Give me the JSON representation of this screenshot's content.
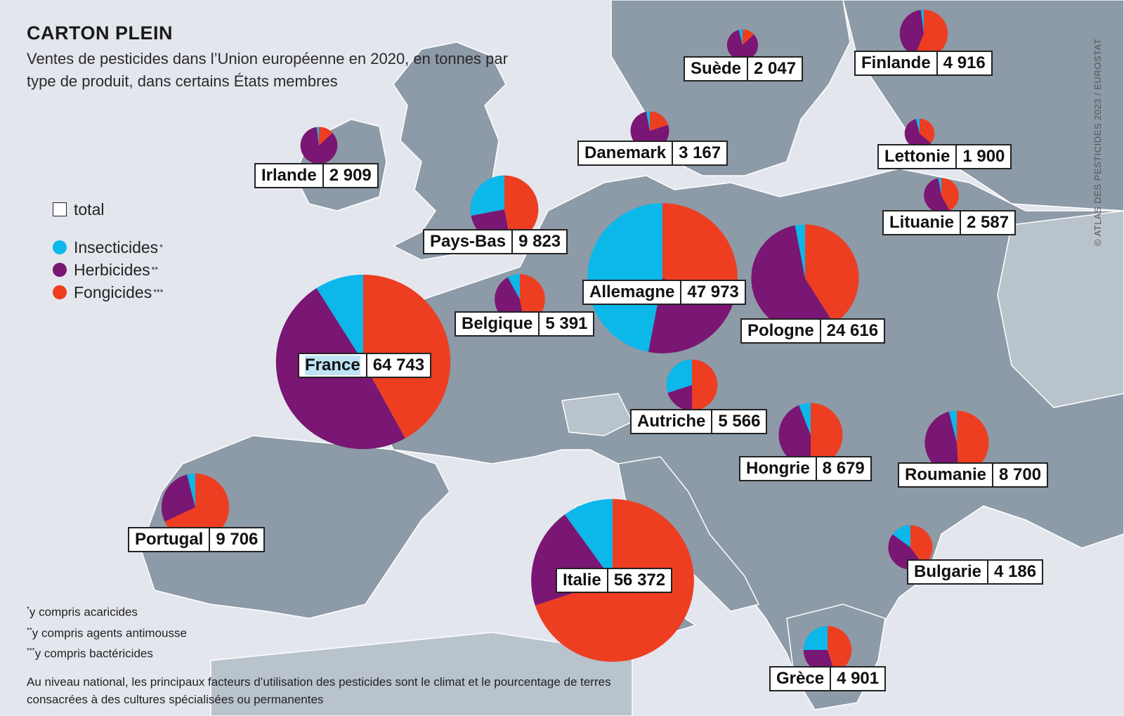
{
  "title": "CARTON PLEIN",
  "subtitle": "Ventes de pesticides dans l’Union européenne en 2020, en tonnes par type de produit, dans certains États membres",
  "source": "© ATLAS DES PESTICIDES 2023 / EUROSTAT",
  "legend": {
    "total": "total",
    "insecticides": "Insecticides",
    "herbicides": "Herbicides",
    "fongicides": "Fongicides",
    "ins_mark": "*",
    "herb_mark": "**",
    "fong_mark": "***"
  },
  "colors": {
    "insecticides": "#0cb7ea",
    "herbicides": "#7a1673",
    "fongicides": "#ee3e22",
    "land": "#8d9aa7",
    "land_light": "#b9c3cc",
    "sea": "#e4e6ee"
  },
  "notes": {
    "n1_mark": "*",
    "n1": "y compris acaricides",
    "n2_mark": "**",
    "n2": "y compris agents antimousse",
    "n3_mark": "***",
    "n3": "y compris bactéricides"
  },
  "footer": "Au niveau national, les principaux facteurs d’utilisation des pesticides sont le climat et le pourcentage de terres consacrées à des cultures spécialisées ou permanentes",
  "chart_data": {
    "type": "pie",
    "unit": "tonnes",
    "segments": [
      "Insecticides",
      "Herbicides",
      "Fongicides"
    ],
    "countries": [
      {
        "name": "France",
        "total": "64 743",
        "value": 64743,
        "shares": [
          0.09,
          0.49,
          0.42
        ]
      },
      {
        "name": "Italie",
        "total": "56 372",
        "value": 56372,
        "shares": [
          0.1,
          0.2,
          0.7
        ]
      },
      {
        "name": "Allemagne",
        "total": "47 973",
        "value": 47973,
        "shares": [
          0.47,
          0.23,
          0.3
        ]
      },
      {
        "name": "Pologne",
        "total": "24 616",
        "value": 24616,
        "shares": [
          0.03,
          0.56,
          0.41
        ]
      },
      {
        "name": "Pays-Bas",
        "total": "9 823",
        "value": 9823,
        "shares": [
          0.28,
          0.25,
          0.47
        ]
      },
      {
        "name": "Portugal",
        "total": "9 706",
        "value": 9706,
        "shares": [
          0.04,
          0.28,
          0.68
        ]
      },
      {
        "name": "Roumanie",
        "total": "8 700",
        "value": 8700,
        "shares": [
          0.04,
          0.47,
          0.49
        ]
      },
      {
        "name": "Hongrie",
        "total": "8 679",
        "value": 8679,
        "shares": [
          0.06,
          0.44,
          0.5
        ]
      },
      {
        "name": "Autriche",
        "total": "5 566",
        "value": 5566,
        "shares": [
          0.3,
          0.2,
          0.5
        ]
      },
      {
        "name": "Belgique",
        "total": "5 391",
        "value": 5391,
        "shares": [
          0.08,
          0.45,
          0.47
        ]
      },
      {
        "name": "Finlande",
        "total": "4 916",
        "value": 4916,
        "shares": [
          0.02,
          0.42,
          0.56
        ]
      },
      {
        "name": "Grèce",
        "total": "4 901",
        "value": 4901,
        "shares": [
          0.25,
          0.3,
          0.45
        ]
      },
      {
        "name": "Bulgarie",
        "total": "4 186",
        "value": 4186,
        "shares": [
          0.15,
          0.45,
          0.4
        ]
      },
      {
        "name": "Danemark",
        "total": "3 167",
        "value": 3167,
        "shares": [
          0.03,
          0.77,
          0.2
        ]
      },
      {
        "name": "Irlande",
        "total": "2 909",
        "value": 2909,
        "shares": [
          0.02,
          0.85,
          0.13
        ]
      },
      {
        "name": "Lituanie",
        "total": "2 587",
        "value": 2587,
        "shares": [
          0.03,
          0.55,
          0.42
        ]
      },
      {
        "name": "Suède",
        "total": "2 047",
        "value": 2047,
        "shares": [
          0.04,
          0.83,
          0.13
        ]
      },
      {
        "name": "Lettonie",
        "total": "1 900",
        "value": 1900,
        "shares": [
          0.04,
          0.6,
          0.36
        ]
      }
    ]
  }
}
